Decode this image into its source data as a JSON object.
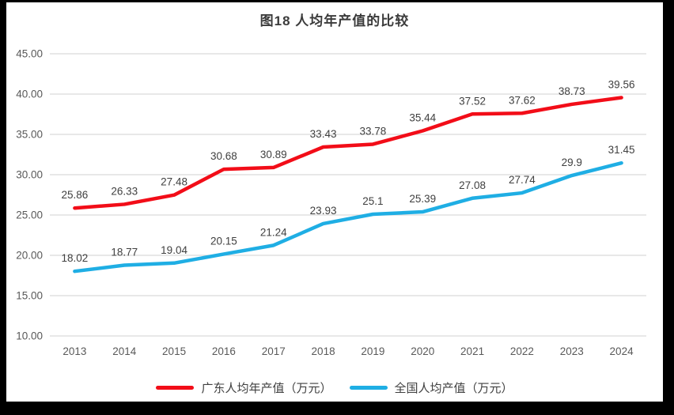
{
  "title": "图18 人均年产值的比较",
  "chart_data": {
    "type": "line",
    "title": "图18 人均年产值的比较",
    "categories": [
      "2013",
      "2014",
      "2015",
      "2016",
      "2017",
      "2018",
      "2019",
      "2020",
      "2021",
      "2022",
      "2023",
      "2024"
    ],
    "series": [
      {
        "name": "广东人均年产值（万元）",
        "color": "#F20D18",
        "values": [
          25.86,
          26.33,
          27.48,
          30.68,
          30.89,
          33.43,
          33.78,
          35.44,
          37.52,
          37.62,
          38.73,
          39.56
        ]
      },
      {
        "name": "全国人均产值（万元）",
        "color": "#1FAEE4",
        "values": [
          18.02,
          18.77,
          19.04,
          20.15,
          21.24,
          23.93,
          25.1,
          25.39,
          27.08,
          27.74,
          29.9,
          31.45
        ]
      }
    ],
    "xlabel": "",
    "ylabel": "",
    "ylim": [
      10,
      45
    ],
    "ytick_step": 5,
    "ytick_decimals": 2,
    "grid": true,
    "legend_position": "bottom",
    "colors": {
      "grid": "#d9d9d9",
      "axis_text": "#595959",
      "data_label": "#3f3f3f",
      "title": "#3b3b3b",
      "background": "#ffffff",
      "frame": "#000000"
    }
  }
}
